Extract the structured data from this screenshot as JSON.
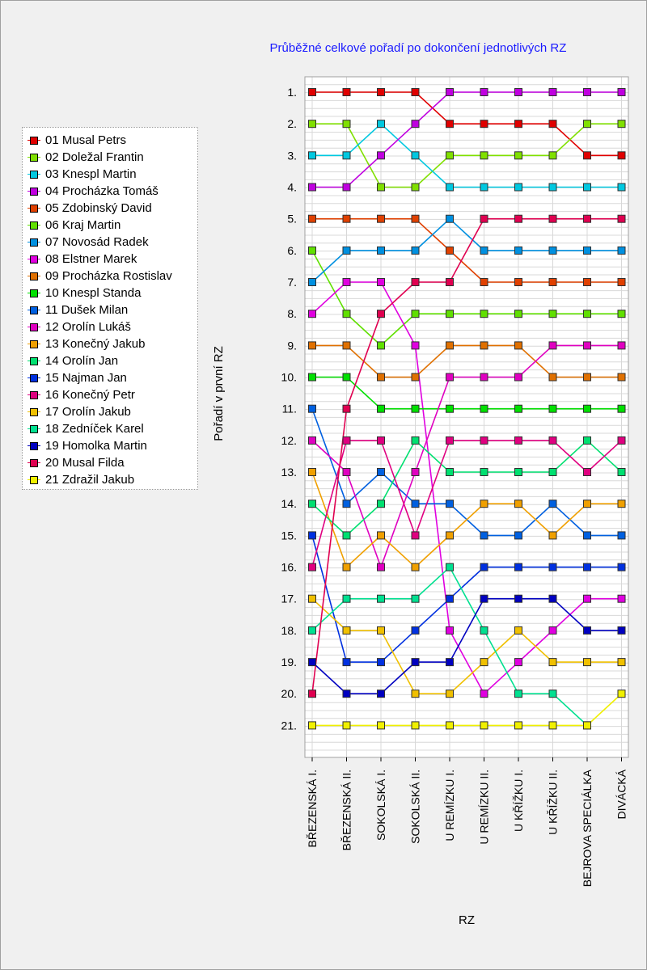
{
  "legend": {
    "items": [
      {
        "label": "01 Musal Petrs",
        "color": "#e00000"
      },
      {
        "label": "02 Doležal Frantin",
        "color": "#80e000"
      },
      {
        "label": "03 Knespl Martin",
        "color": "#00c8e0"
      },
      {
        "label": "04 Procházka Tomáš",
        "color": "#c000e0"
      },
      {
        "label": "05 Zdobinský David",
        "color": "#e04000"
      },
      {
        "label": "06 Kraj Martin",
        "color": "#60e000"
      },
      {
        "label": "07 Novosád Radek",
        "color": "#0090e0"
      },
      {
        "label": "08 Elstner Marek",
        "color": "#e000e0"
      },
      {
        "label": "09 Procházka Rostislav",
        "color": "#e07000"
      },
      {
        "label": "10 Knespl Standa",
        "color": "#00e000"
      },
      {
        "label": "11 Dušek Milan",
        "color": "#0060e0"
      },
      {
        "label": "12 Orolín Lukáš",
        "color": "#e000c0"
      },
      {
        "label": "13 Konečný Jakub",
        "color": "#f0a000"
      },
      {
        "label": "14 Orolín Jan",
        "color": "#00e070"
      },
      {
        "label": "15 Najman Jan",
        "color": "#0030e0"
      },
      {
        "label": "16 Konečný Petr",
        "color": "#e00080"
      },
      {
        "label": "17 Orolín Jakub",
        "color": "#f0c000"
      },
      {
        "label": "18 Zedníček Karel",
        "color": "#00e090"
      },
      {
        "label": "19 Homolka Martin",
        "color": "#0000c0"
      },
      {
        "label": "20 Musal Filda",
        "color": "#e00050"
      },
      {
        "label": "21 Zdražil Jakub",
        "color": "#f0f000"
      }
    ]
  },
  "chart_data": {
    "type": "line",
    "title": "Průběžné celkové pořadí po dokončení jednotlivých RZ",
    "xlabel": "RZ",
    "ylabel": "Pořadí v první RZ",
    "y_inverted": true,
    "ylim": [
      1,
      21
    ],
    "y_ticks": [
      "1.",
      "2.",
      "3.",
      "4.",
      "5.",
      "6.",
      "7.",
      "8.",
      "9.",
      "10.",
      "11.",
      "12.",
      "13.",
      "14.",
      "15.",
      "16.",
      "17.",
      "18.",
      "19.",
      "20.",
      "21."
    ],
    "categories": [
      "BŘEZENSKÁ I.",
      "BŘEZENSKÁ II.",
      "SOKOLSKÁ I.",
      "SOKOLSKÁ II.",
      "U REMÍZKU I.",
      "U REMÍZKU II.",
      "U KŘÍŽKU I.",
      "U KŘÍŽKU II.",
      "BEJROVA SPECIÁLKA",
      "DIVÁCKÁ"
    ],
    "grid": true,
    "legend_position": "left",
    "series": [
      {
        "name": "01 Musal Petrs",
        "color": "#e00000",
        "values": [
          1,
          1,
          1,
          1,
          2,
          2,
          2,
          2,
          3,
          3
        ]
      },
      {
        "name": "02 Doležal Frantin",
        "color": "#80e000",
        "values": [
          2,
          2,
          4,
          4,
          3,
          3,
          3,
          3,
          2,
          2
        ]
      },
      {
        "name": "03 Knespl Martin",
        "color": "#00c8e0",
        "values": [
          3,
          3,
          2,
          3,
          4,
          4,
          4,
          4,
          4,
          4
        ]
      },
      {
        "name": "04 Procházka Tomáš",
        "color": "#c000e0",
        "values": [
          4,
          4,
          3,
          2,
          1,
          1,
          1,
          1,
          1,
          1
        ]
      },
      {
        "name": "05 Zdobinský David",
        "color": "#e04000",
        "values": [
          5,
          5,
          5,
          5,
          6,
          7,
          7,
          7,
          7,
          7
        ]
      },
      {
        "name": "06 Kraj Martin",
        "color": "#60e000",
        "values": [
          6,
          8,
          9,
          8,
          8,
          8,
          8,
          8,
          8,
          8
        ]
      },
      {
        "name": "07 Novosád Radek",
        "color": "#0090e0",
        "values": [
          7,
          6,
          6,
          6,
          5,
          6,
          6,
          6,
          6,
          6
        ]
      },
      {
        "name": "08 Elstner Marek",
        "color": "#e000e0",
        "values": [
          8,
          7,
          7,
          9,
          18,
          20,
          19,
          18,
          17,
          17
        ]
      },
      {
        "name": "09 Procházka Rostislav",
        "color": "#e07000",
        "values": [
          9,
          9,
          10,
          10,
          9,
          9,
          9,
          10,
          10,
          10
        ]
      },
      {
        "name": "10 Knespl Standa",
        "color": "#00e000",
        "values": [
          10,
          10,
          11,
          11,
          11,
          11,
          11,
          11,
          11,
          11
        ]
      },
      {
        "name": "11 Dušek Milan",
        "color": "#0060e0",
        "values": [
          11,
          14,
          13,
          14,
          14,
          15,
          15,
          14,
          15,
          15
        ]
      },
      {
        "name": "12 Orolín Lukáš",
        "color": "#e000c0",
        "values": [
          12,
          13,
          16,
          13,
          10,
          10,
          10,
          9,
          9,
          9
        ]
      },
      {
        "name": "13 Konečný Jakub",
        "color": "#f0a000",
        "values": [
          13,
          16,
          15,
          16,
          15,
          14,
          14,
          15,
          14,
          14
        ]
      },
      {
        "name": "14 Orolín Jan",
        "color": "#00e070",
        "values": [
          14,
          15,
          14,
          12,
          13,
          13,
          13,
          13,
          12,
          13
        ]
      },
      {
        "name": "15 Najman Jan",
        "color": "#0030e0",
        "values": [
          15,
          19,
          19,
          18,
          17,
          16,
          16,
          16,
          16,
          16
        ]
      },
      {
        "name": "16 Konečný Petr",
        "color": "#e00080",
        "values": [
          16,
          12,
          12,
          15,
          12,
          12,
          12,
          12,
          13,
          12
        ]
      },
      {
        "name": "17 Orolín Jakub",
        "color": "#f0c000",
        "values": [
          17,
          18,
          18,
          20,
          20,
          19,
          18,
          19,
          19,
          19
        ]
      },
      {
        "name": "18 Zedníček Karel",
        "color": "#00e090",
        "values": [
          18,
          17,
          17,
          17,
          16,
          18,
          20,
          20,
          21,
          null
        ]
      },
      {
        "name": "19 Homolka Martin",
        "color": "#0000c0",
        "values": [
          19,
          20,
          20,
          19,
          19,
          17,
          17,
          17,
          18,
          18
        ]
      },
      {
        "name": "20 Musal Filda",
        "color": "#e00050",
        "values": [
          20,
          11,
          8,
          7,
          7,
          5,
          5,
          5,
          5,
          5
        ]
      },
      {
        "name": "21 Zdražil Jakub",
        "color": "#f0f000",
        "values": [
          21,
          21,
          21,
          21,
          21,
          21,
          21,
          21,
          21,
          20
        ]
      }
    ]
  }
}
